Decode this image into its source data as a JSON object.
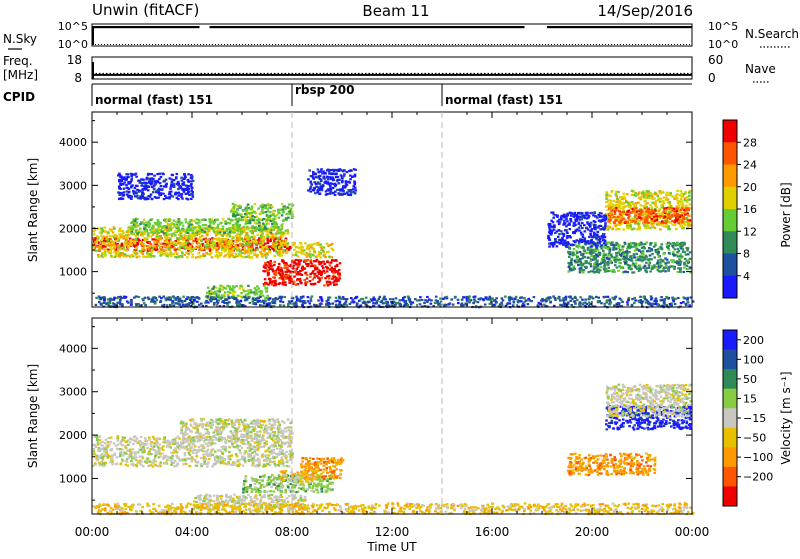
{
  "header": {
    "station": "Unwin (fitACF)",
    "beam": "Beam 11",
    "date": "14/Sep/2016"
  },
  "top_panels": {
    "nsky_label": "N.Sky",
    "nsky_ticks": [
      "10^5",
      "10^0"
    ],
    "nsearch_label": "N.Search",
    "nsearch_ticks": [
      "10^5",
      "10^0"
    ],
    "freq_label": "Freq.",
    "freq_unit": "[MHz]",
    "freq_ticks": [
      "18",
      "8"
    ],
    "nave_label": "Nave",
    "nave_ticks": [
      "60",
      "0"
    ],
    "cpid_label": "CPID",
    "cpid_segments": [
      {
        "name": "normal (fast) 151",
        "start_h": 0,
        "end_h": 8
      },
      {
        "name": "rbsp 200",
        "start_h": 8,
        "end_h": 14
      },
      {
        "name": "normal (fast) 151",
        "start_h": 14,
        "end_h": 24
      }
    ]
  },
  "chart_data": [
    {
      "type": "heatmap",
      "panel": "power",
      "ylabel": "Slant Range [km]",
      "yticks": [
        "1000",
        "2000",
        "3000",
        "4000"
      ],
      "ylim": [
        180,
        4700
      ],
      "xlim": [
        0,
        24
      ],
      "colorbar_label": "Power [dB]",
      "colorbar_ticks": [
        "4",
        "8",
        "12",
        "16",
        "20",
        "24",
        "28"
      ],
      "colors": [
        "#1a1aff",
        "#1f4f9f",
        "#2e8b57",
        "#66cc33",
        "#e0d000",
        "#ff9900",
        "#ff5500",
        "#ee0000"
      ],
      "regions": [
        {
          "t0": 0.0,
          "t1": 7.9,
          "r0": 1500,
          "r1": 1800,
          "level": 7
        },
        {
          "t0": 0.0,
          "t1": 7.8,
          "r0": 1350,
          "r1": 2050,
          "level": 4
        },
        {
          "t0": 1.5,
          "t1": 7.6,
          "r0": 1900,
          "r1": 2250,
          "level": 3
        },
        {
          "t0": 5.5,
          "t1": 8.0,
          "r0": 2200,
          "r1": 2600,
          "level": 3
        },
        {
          "t0": 6.8,
          "t1": 9.9,
          "r0": 700,
          "r1": 1300,
          "level": 7
        },
        {
          "t0": 8.0,
          "t1": 9.6,
          "r0": 1350,
          "r1": 1700,
          "level": 4
        },
        {
          "t0": 4.5,
          "t1": 7.0,
          "r0": 400,
          "r1": 700,
          "level": 3
        },
        {
          "t0": 8.6,
          "t1": 10.5,
          "r0": 2800,
          "r1": 3400,
          "level": 0
        },
        {
          "t0": 1.0,
          "t1": 4.0,
          "r0": 2700,
          "r1": 3300,
          "level": 0
        },
        {
          "t0": 19.0,
          "t1": 23.9,
          "r0": 1000,
          "r1": 1700,
          "level": 2
        },
        {
          "t0": 20.5,
          "t1": 23.9,
          "r0": 2000,
          "r1": 2900,
          "level": 4
        },
        {
          "t0": 20.6,
          "t1": 23.9,
          "r0": 2150,
          "r1": 2500,
          "level": 6
        },
        {
          "t0": 18.2,
          "t1": 20.5,
          "r0": 1600,
          "r1": 2400,
          "level": 0
        },
        {
          "t0": 0.0,
          "t1": 24.0,
          "r0": 200,
          "r1": 450,
          "level": 1
        }
      ]
    },
    {
      "type": "heatmap",
      "panel": "velocity",
      "xlabel": "Time UT",
      "xticks": [
        "00:00",
        "04:00",
        "08:00",
        "12:00",
        "16:00",
        "20:00",
        "00:00"
      ],
      "ylabel": "Slant Range [km]",
      "yticks": [
        "1000",
        "2000",
        "3000",
        "4000"
      ],
      "ylim": [
        180,
        4700
      ],
      "xlim": [
        0,
        24
      ],
      "colorbar_label": "Velocity [m s⁻¹]",
      "colorbar_ticks": [
        "200",
        "100",
        "50",
        "15",
        "−15",
        "−50",
        "−100",
        "−200"
      ],
      "colors": [
        "#1a1aff",
        "#1f4f9f",
        "#2e8b57",
        "#88cc44",
        "#c8c8c0",
        "#e8c000",
        "#ff9900",
        "#ff5500",
        "#ee0000"
      ],
      "regions": [
        {
          "t0": 0.0,
          "t1": 8.0,
          "r0": 1300,
          "r1": 2000,
          "level": 4
        },
        {
          "t0": 3.5,
          "t1": 8.0,
          "r0": 1900,
          "r1": 2400,
          "level": 4
        },
        {
          "t0": 6.0,
          "t1": 9.6,
          "r0": 700,
          "r1": 1100,
          "level": 3
        },
        {
          "t0": 8.3,
          "t1": 10.0,
          "r0": 1000,
          "r1": 1500,
          "level": 6
        },
        {
          "t0": 7.5,
          "t1": 9.0,
          "r0": 950,
          "r1": 1200,
          "level": 5
        },
        {
          "t0": 20.5,
          "t1": 23.9,
          "r0": 2150,
          "r1": 2700,
          "level": 0
        },
        {
          "t0": 19.0,
          "t1": 22.5,
          "r0": 1100,
          "r1": 1600,
          "level": 6
        },
        {
          "t0": 20.5,
          "t1": 23.9,
          "r0": 2450,
          "r1": 3200,
          "level": 4
        },
        {
          "t0": 4.0,
          "t1": 8.5,
          "r0": 300,
          "r1": 650,
          "level": 4
        },
        {
          "t0": 0.0,
          "t1": 24.0,
          "r0": 200,
          "r1": 450,
          "level": 5
        }
      ]
    }
  ],
  "series_lines": {
    "nsky_gap_h": [
      [
        4.3,
        4.7
      ],
      [
        17.3,
        18.2
      ]
    ],
    "freq_value": 10.5,
    "nave_value": 22
  }
}
